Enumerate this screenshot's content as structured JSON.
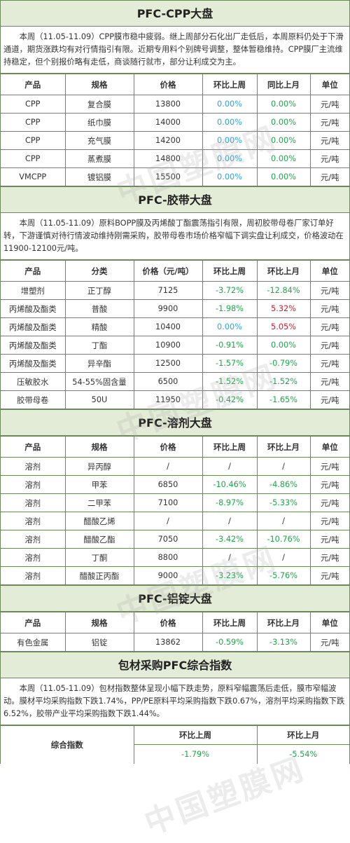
{
  "watermark": "中国塑膜网",
  "cpp": {
    "title": "PFC-CPP大盘",
    "intro": "本周（11.05-11.09）CPP膜市稳中疲弱。继上周部分石化出厂走低后，本周原料仍处于下滑通道，期货涨跌均有对行情指引有限。近期专用料个别牌号调整，整体暂稳维持。CPP膜厂主流维持稳定，但个别报价略有走低，商谈随行就市，部分让利成交为主。",
    "headers": [
      "产品",
      "规格",
      "价格",
      "环比上周",
      "同比上月",
      "单位"
    ],
    "rows": [
      [
        "CPP",
        "复合膜",
        "13800",
        "0.00%",
        "0.00%",
        "元/吨"
      ],
      [
        "CPP",
        "纸巾膜",
        "14000",
        "0.00%",
        "0.00%",
        "元/吨"
      ],
      [
        "CPP",
        "充气膜",
        "14200",
        "0.00%",
        "0.00%",
        "元/吨"
      ],
      [
        "CPP",
        "蒸煮膜",
        "14800",
        "0.00%",
        "0.00%",
        "元/吨"
      ],
      [
        "VMCPP",
        "镀铝膜",
        "15500",
        "0.00%",
        "0.00%",
        "元/吨"
      ]
    ]
  },
  "tape": {
    "title": "PFC-胶带大盘",
    "intro": "本周（11.05-11.09）原料BOPP膜及丙烯酸丁酯震荡指引有限，周初胶带母卷厂家订单好转，下游谨慎对待行情波动维持刚需采购，胶带母卷市场价格窄幅下调实盘让利成交，价格波动在11900-12100元/吨。",
    "headers": [
      "产品",
      "分类",
      "价格（元/吨）",
      "环比上周",
      "环比上月",
      "单位"
    ],
    "rows": [
      [
        "增塑剂",
        "正丁醇",
        "7125",
        "-3.72%",
        "-12.84%",
        "元/吨"
      ],
      [
        "丙烯酸及酯类",
        "普酸",
        "9900",
        "-1.98%",
        "5.32%",
        "元/吨"
      ],
      [
        "丙烯酸及酯类",
        "精酸",
        "10400",
        "0.00%",
        "5.05%",
        "元/吨"
      ],
      [
        "丙烯酸及酯类",
        "丁酯",
        "10900",
        "-0.91%",
        "0.00%",
        "元/吨"
      ],
      [
        "丙烯酸及酯类",
        "异辛酯",
        "12500",
        "-1.57%",
        "-0.79%",
        "元/吨"
      ],
      [
        "压敏胶水",
        "54-55%固含量",
        "6500",
        "-1.52%",
        "-1.52%",
        "元/吨"
      ],
      [
        "胶带母卷",
        "50U",
        "11950",
        "-0.42%",
        "-1.65%",
        "元/吨"
      ]
    ]
  },
  "solvent": {
    "title": "PFC-溶剂大盘",
    "headers": [
      "产品",
      "规格",
      "价格",
      "环比上周",
      "环比上月",
      "单位"
    ],
    "rows": [
      [
        "溶剂",
        "异丙醇",
        "/",
        "/",
        "/",
        "元/吨"
      ],
      [
        "溶剂",
        "甲苯",
        "6850",
        "-10.46%",
        "-4.86%",
        "元/吨"
      ],
      [
        "溶剂",
        "二甲苯",
        "7100",
        "-8.97%",
        "-5.33%",
        "元/吨"
      ],
      [
        "溶剂",
        "醋酸乙烯",
        "/",
        "/",
        "/",
        "元/吨"
      ],
      [
        "溶剂",
        "醋酸乙酯",
        "7050",
        "-3.42%",
        "-10.76%",
        "元/吨"
      ],
      [
        "溶剂",
        "丁酮",
        "8800",
        "/",
        "/",
        "元/吨"
      ],
      [
        "溶剂",
        "醋酸正丙酯",
        "9000",
        "-3.23%",
        "-5.76%",
        "元/吨"
      ]
    ]
  },
  "ingot": {
    "title": "PFC-铝锭大盘",
    "headers": [
      "产品",
      "规格",
      "价格",
      "环比上周",
      "环比上月",
      "单位"
    ],
    "rows": [
      [
        "有色金属",
        "铝锭",
        "13862",
        "-0.59%",
        "-3.13%",
        "元/吨"
      ]
    ]
  },
  "index": {
    "title": "包材采购PFC综合指数",
    "intro": "本周（11.05-11.09）包材指数整体呈现小幅下跌走势，原料窄幅震荡后走低，膜市窄幅波动。膜材平均采购指数下跌1.74%，PP/PE原料平均采购指数下跌0.67%，溶剂平均采购指数下跌6.52%，胶带产业平均采购指数下跌1.44%。",
    "label": "综合指数",
    "week_header": "环比上周",
    "month_header": "环比上月",
    "week_value": "-1.79%",
    "month_value": "-5.54%"
  },
  "colors": {
    "green": "#1aa84a",
    "red": "#e0162b",
    "blue": "#2aa6d8",
    "header_bg": "#e3ecd6",
    "border": "#6a8a5a"
  }
}
